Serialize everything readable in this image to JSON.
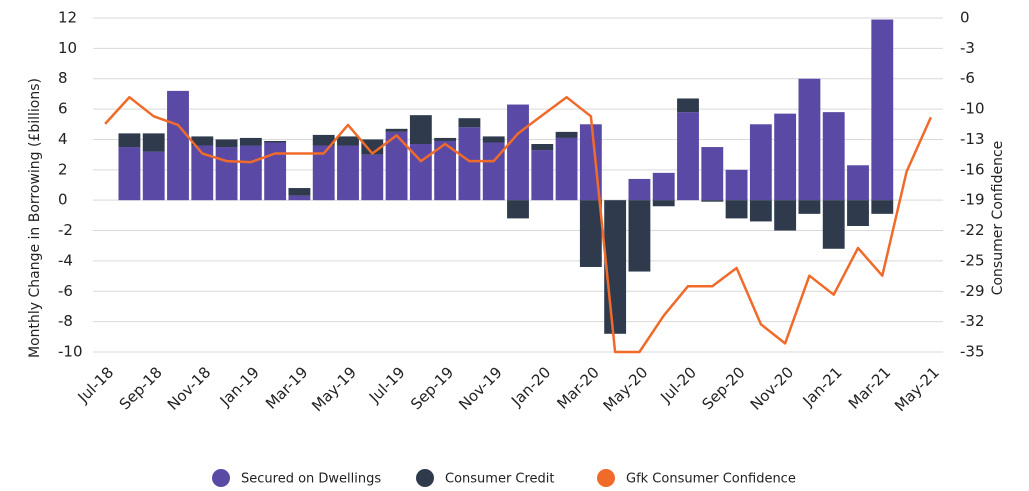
{
  "chart_data": {
    "type": "bar",
    "y_label": "Monthly Change in Borrowing (£billions)",
    "y2_label": "Consumer Confidence",
    "categories": [
      "Jul-18",
      null,
      "Sep-18",
      null,
      "Nov-18",
      null,
      "Jan-19",
      null,
      "Mar-19",
      null,
      "May-19",
      null,
      "Jul-19",
      null,
      "Sep-19",
      null,
      "Nov-19",
      null,
      "Jan-20",
      null,
      "Mar-20",
      null,
      "May-20",
      null,
      "Jul-20",
      null,
      "Sep-20",
      null,
      "Nov-20",
      null,
      "Jan-21",
      null,
      "Mar-21",
      null,
      "May-21"
    ],
    "series": [
      {
        "name": "Secured on Dwellings",
        "color": "#5b4aa5",
        "type": "bar",
        "values": [
          null,
          3.5,
          3.2,
          7.2,
          3.6,
          3.5,
          3.6,
          3.8,
          0.3,
          3.6,
          3.6,
          3.0,
          4.5,
          3.7,
          3.9,
          4.8,
          3.8,
          6.3,
          3.3,
          4.1,
          5.0,
          0,
          1.4,
          1.8,
          5.8,
          3.5,
          2.0,
          5.0,
          5.7,
          8.0,
          5.8,
          2.3,
          11.9,
          null,
          null
        ]
      },
      {
        "name": "Consumer Credit",
        "color": "#2f3b4d",
        "type": "bar",
        "values": [
          null,
          0.9,
          1.2,
          0,
          0.6,
          0.5,
          0.5,
          0.1,
          0.5,
          0.7,
          0.6,
          1.0,
          0.2,
          1.9,
          0.2,
          0.6,
          0.4,
          -1.2,
          0.4,
          0.4,
          -4.4,
          -8.8,
          -4.7,
          -0.4,
          0.9,
          -0.1,
          -1.2,
          -1.4,
          -2.0,
          -0.9,
          -3.2,
          -1.7,
          -0.9,
          null,
          null
        ]
      },
      {
        "name": "Gfk Consumer Confidence",
        "color": "#f06a2a",
        "type": "line",
        "axis": "y2",
        "values": [
          -11.1,
          -8.3,
          -10.3,
          -11.2,
          -14.2,
          -15.0,
          -15.1,
          -14.2,
          -14.2,
          -14.2,
          -11.2,
          -14.2,
          -12.3,
          -15.0,
          -13.2,
          -15.0,
          -15.0,
          -12.1,
          -10.2,
          -8.3,
          -10.3,
          -35,
          -35,
          -31.2,
          -28.1,
          -28.1,
          -26.2,
          -32.1,
          -34.1,
          -27.0,
          -29.0,
          -24.1,
          -27.0,
          -16.1,
          -10.4
        ]
      }
    ],
    "ylim": [
      -10,
      12
    ],
    "yticks": [
      12,
      10,
      8,
      6,
      4,
      2,
      0,
      -2,
      -4,
      -6,
      -8,
      -10
    ],
    "y2lim": [
      -35,
      0
    ],
    "y2ticks": [
      0,
      {
        "value": -3.18,
        "label": "-3"
      },
      {
        "value": -6.36,
        "label": "-6"
      },
      {
        "value": -9.55,
        "label": "-10"
      },
      {
        "value": -12.73,
        "label": "-13"
      },
      {
        "value": -15.91,
        "label": "-16"
      },
      {
        "value": -19.09,
        "label": "-19"
      },
      {
        "value": -22.27,
        "label": "-22"
      },
      {
        "value": -25.45,
        "label": "-25"
      },
      {
        "value": -28.64,
        "label": "-29"
      },
      {
        "value": -31.82,
        "label": "-32"
      },
      -35
    ],
    "grid": true,
    "legend": "bottom"
  }
}
